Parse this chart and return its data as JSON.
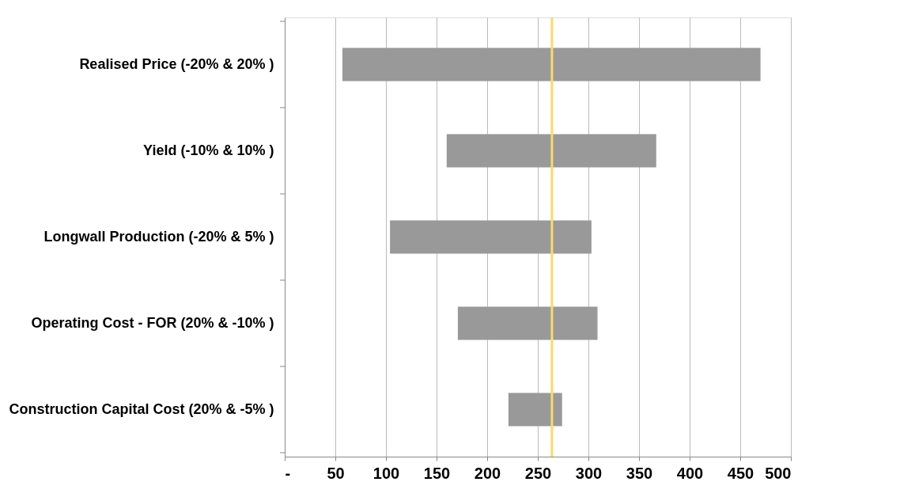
{
  "chart_data": {
    "type": "bar",
    "orientation": "horizontal",
    "categories": [
      "Realised Price (-20% & 20% )",
      "Yield (-10% & 10% )",
      "Longwall Production (-20% & 5% )",
      "Operating Cost - FOR (20% & -10% )",
      "Construction Capital Cost (20% & -5% )"
    ],
    "base": [
      57,
      160,
      104,
      171,
      221
    ],
    "values": [
      413,
      207,
      199,
      138,
      53
    ],
    "color": "#999999",
    "xlim": [
      0,
      500
    ],
    "xticks": [
      {
        "value": 0,
        "label": "-"
      },
      50,
      100,
      150,
      200,
      250,
      300,
      350,
      400,
      450,
      500
    ],
    "grid": "x",
    "ref_lines": [
      {
        "axis": "x",
        "value": 264,
        "color": "#ffd966"
      }
    ]
  }
}
